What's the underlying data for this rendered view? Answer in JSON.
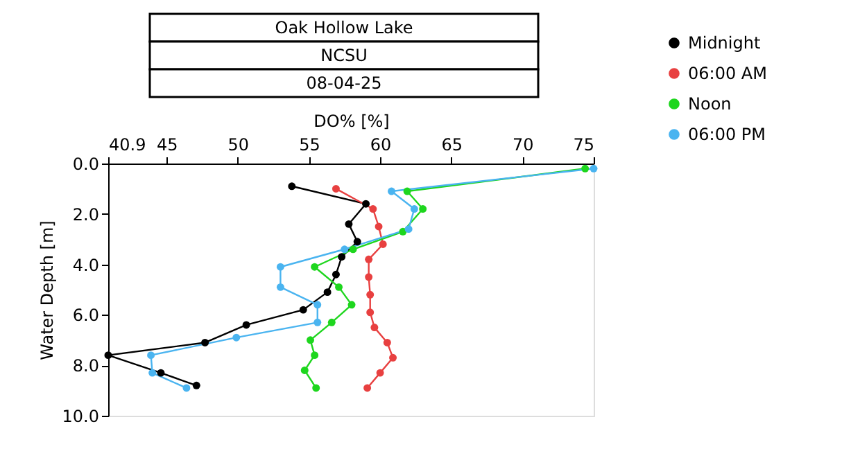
{
  "chart_data": {
    "type": "line",
    "title": "Oak Hollow Lake",
    "subtitle": "NCSU",
    "annotations": [
      "08-04-25"
    ],
    "xlabel": "DO% [%]",
    "ylabel": "Water Depth [m]",
    "xlim": [
      40.9,
      75
    ],
    "xticks": [
      40.9,
      45,
      50,
      55,
      60,
      65,
      70,
      75
    ],
    "ylim": [
      10,
      0
    ],
    "yticks": [
      {
        "value": 0,
        "label": "0.0"
      },
      {
        "value": 2,
        "label": "2.0"
      },
      {
        "value": 4,
        "label": "4.0"
      },
      {
        "value": 6,
        "label": "6.0"
      },
      {
        "value": 8,
        "label": "8.0"
      },
      {
        "value": 10,
        "label": "10.0"
      }
    ],
    "marker": "circle",
    "line_style": "solid",
    "grid": false,
    "legend": "top right",
    "series": [
      {
        "name": "Midnight",
        "color": "#000000",
        "x": [
          53.8,
          59.0,
          57.8,
          58.4,
          57.3,
          56.9,
          56.3,
          54.6,
          50.6,
          47.7,
          40.9,
          44.6,
          47.1
        ],
        "values": [
          0.9,
          1.6,
          2.4,
          3.1,
          3.7,
          4.4,
          5.1,
          5.8,
          6.4,
          7.1,
          7.6,
          8.3,
          8.8
        ]
      },
      {
        "name": "06:00 AM",
        "color": "#e84040",
        "x": [
          56.9,
          59.5,
          59.9,
          60.2,
          59.2,
          59.2,
          59.3,
          59.3,
          59.6,
          60.5,
          60.9,
          60.0,
          59.1
        ],
        "values": [
          1.0,
          1.8,
          2.5,
          3.2,
          3.8,
          4.5,
          5.2,
          5.9,
          6.5,
          7.1,
          7.7,
          8.3,
          8.9
        ]
      },
      {
        "name": "Noon",
        "color": "#1ed61e",
        "x": [
          74.4,
          61.9,
          63.0,
          61.6,
          58.1,
          55.4,
          57.1,
          58.0,
          56.6,
          55.1,
          55.4,
          54.7,
          55.5
        ],
        "values": [
          0.2,
          1.1,
          1.8,
          2.7,
          3.4,
          4.1,
          4.9,
          5.6,
          6.3,
          7.0,
          7.6,
          8.2,
          8.9
        ]
      },
      {
        "name": "06:00 PM",
        "color": "#4ab4f0",
        "x": [
          75.0,
          60.8,
          62.4,
          62.0,
          57.5,
          53.0,
          53.0,
          55.6,
          55.6,
          49.9,
          43.9,
          44.0,
          46.4
        ],
        "values": [
          0.2,
          1.1,
          1.8,
          2.6,
          3.4,
          4.1,
          4.9,
          5.6,
          6.3,
          6.9,
          7.6,
          8.3,
          8.9
        ]
      }
    ]
  }
}
